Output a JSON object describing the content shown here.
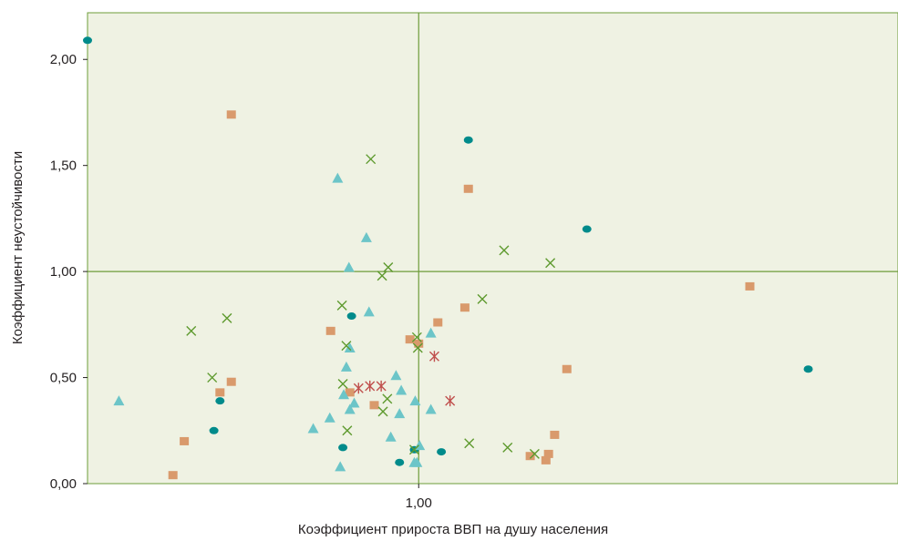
{
  "chart_data": {
    "type": "scatter",
    "title": "",
    "xlabel": "Коэффициент прироста ВВП на душу населения",
    "ylabel": "Коэффициент неустойчивости",
    "xlim": [
      0.62,
      1.55
    ],
    "ylim": [
      0,
      2.22
    ],
    "x_ticks": [
      {
        "value": 1.0,
        "label": "1,00"
      }
    ],
    "y_ticks": [
      {
        "value": 0,
        "label": "0,00"
      },
      {
        "value": 0.5,
        "label": "0,50"
      },
      {
        "value": 1.0,
        "label": "1,00"
      },
      {
        "value": 1.5,
        "label": "1,50"
      },
      {
        "value": 2.0,
        "label": "2,00"
      }
    ],
    "reference_lines": {
      "x": 1.0,
      "y": 1.0
    },
    "grid": false,
    "legend": "none",
    "colors": {
      "plot_background": "#eff2e3",
      "frame": "#6e9c3a",
      "reference_line": "#6e9c3a"
    },
    "series": [
      {
        "marker": "circle",
        "color": "#008b8b",
        "points": [
          [
            0.62,
            2.09
          ],
          [
            1.057,
            1.62
          ],
          [
            1.193,
            1.2
          ],
          [
            0.923,
            0.79
          ],
          [
            0.772,
            0.39
          ],
          [
            1.447,
            0.54
          ],
          [
            0.765,
            0.25
          ],
          [
            0.913,
            0.17
          ],
          [
            0.995,
            0.16
          ],
          [
            1.026,
            0.15
          ],
          [
            0.978,
            0.1
          ]
        ]
      },
      {
        "marker": "square",
        "color": "#d99a6c",
        "points": [
          [
            0.785,
            1.74
          ],
          [
            1.057,
            1.39
          ],
          [
            1.38,
            0.93
          ],
          [
            1.053,
            0.83
          ],
          [
            1.022,
            0.76
          ],
          [
            0.899,
            0.72
          ],
          [
            0.99,
            0.68
          ],
          [
            1.0,
            0.66
          ],
          [
            1.17,
            0.54
          ],
          [
            0.785,
            0.48
          ],
          [
            0.772,
            0.43
          ],
          [
            0.921,
            0.43
          ],
          [
            0.949,
            0.37
          ],
          [
            1.156,
            0.23
          ],
          [
            0.731,
            0.2
          ],
          [
            1.128,
            0.13
          ],
          [
            1.149,
            0.14
          ],
          [
            1.146,
            0.11
          ],
          [
            0.718,
            0.04
          ]
        ]
      },
      {
        "marker": "triangle",
        "color": "#6cc5c8",
        "points": [
          [
            0.907,
            1.44
          ],
          [
            0.94,
            1.16
          ],
          [
            0.92,
            1.02
          ],
          [
            0.943,
            0.81
          ],
          [
            1.014,
            0.71
          ],
          [
            0.921,
            0.64
          ],
          [
            0.917,
            0.55
          ],
          [
            0.974,
            0.51
          ],
          [
            0.98,
            0.44
          ],
          [
            0.914,
            0.42
          ],
          [
            0.926,
            0.38
          ],
          [
            0.921,
            0.35
          ],
          [
            1.014,
            0.35
          ],
          [
            0.978,
            0.33
          ],
          [
            0.996,
            0.39
          ],
          [
            0.898,
            0.31
          ],
          [
            0.879,
            0.26
          ],
          [
            0.968,
            0.22
          ],
          [
            1.001,
            0.18
          ],
          [
            0.995,
            0.1
          ],
          [
            0.656,
            0.39
          ],
          [
            0.91,
            0.08
          ],
          [
            0.998,
            0.1
          ]
        ]
      },
      {
        "marker": "x",
        "color": "#5e9a2e",
        "points": [
          [
            0.945,
            1.53
          ],
          [
            1.098,
            1.1
          ],
          [
            1.151,
            1.04
          ],
          [
            0.965,
            1.02
          ],
          [
            0.958,
            0.98
          ],
          [
            1.073,
            0.87
          ],
          [
            0.912,
            0.84
          ],
          [
            0.739,
            0.72
          ],
          [
            0.78,
            0.78
          ],
          [
            0.998,
            0.69
          ],
          [
            0.917,
            0.65
          ],
          [
            0.999,
            0.64
          ],
          [
            0.763,
            0.5
          ],
          [
            0.913,
            0.47
          ],
          [
            0.964,
            0.4
          ],
          [
            0.959,
            0.34
          ],
          [
            0.918,
            0.25
          ],
          [
            1.058,
            0.19
          ],
          [
            1.102,
            0.17
          ],
          [
            1.133,
            0.14
          ],
          [
            0.995,
            0.16
          ]
        ]
      },
      {
        "marker": "star",
        "color": "#c0504d",
        "points": [
          [
            0.931,
            0.45
          ],
          [
            0.944,
            0.46
          ],
          [
            0.957,
            0.46
          ],
          [
            1.018,
            0.6
          ],
          [
            1.036,
            0.39
          ]
        ]
      }
    ]
  }
}
